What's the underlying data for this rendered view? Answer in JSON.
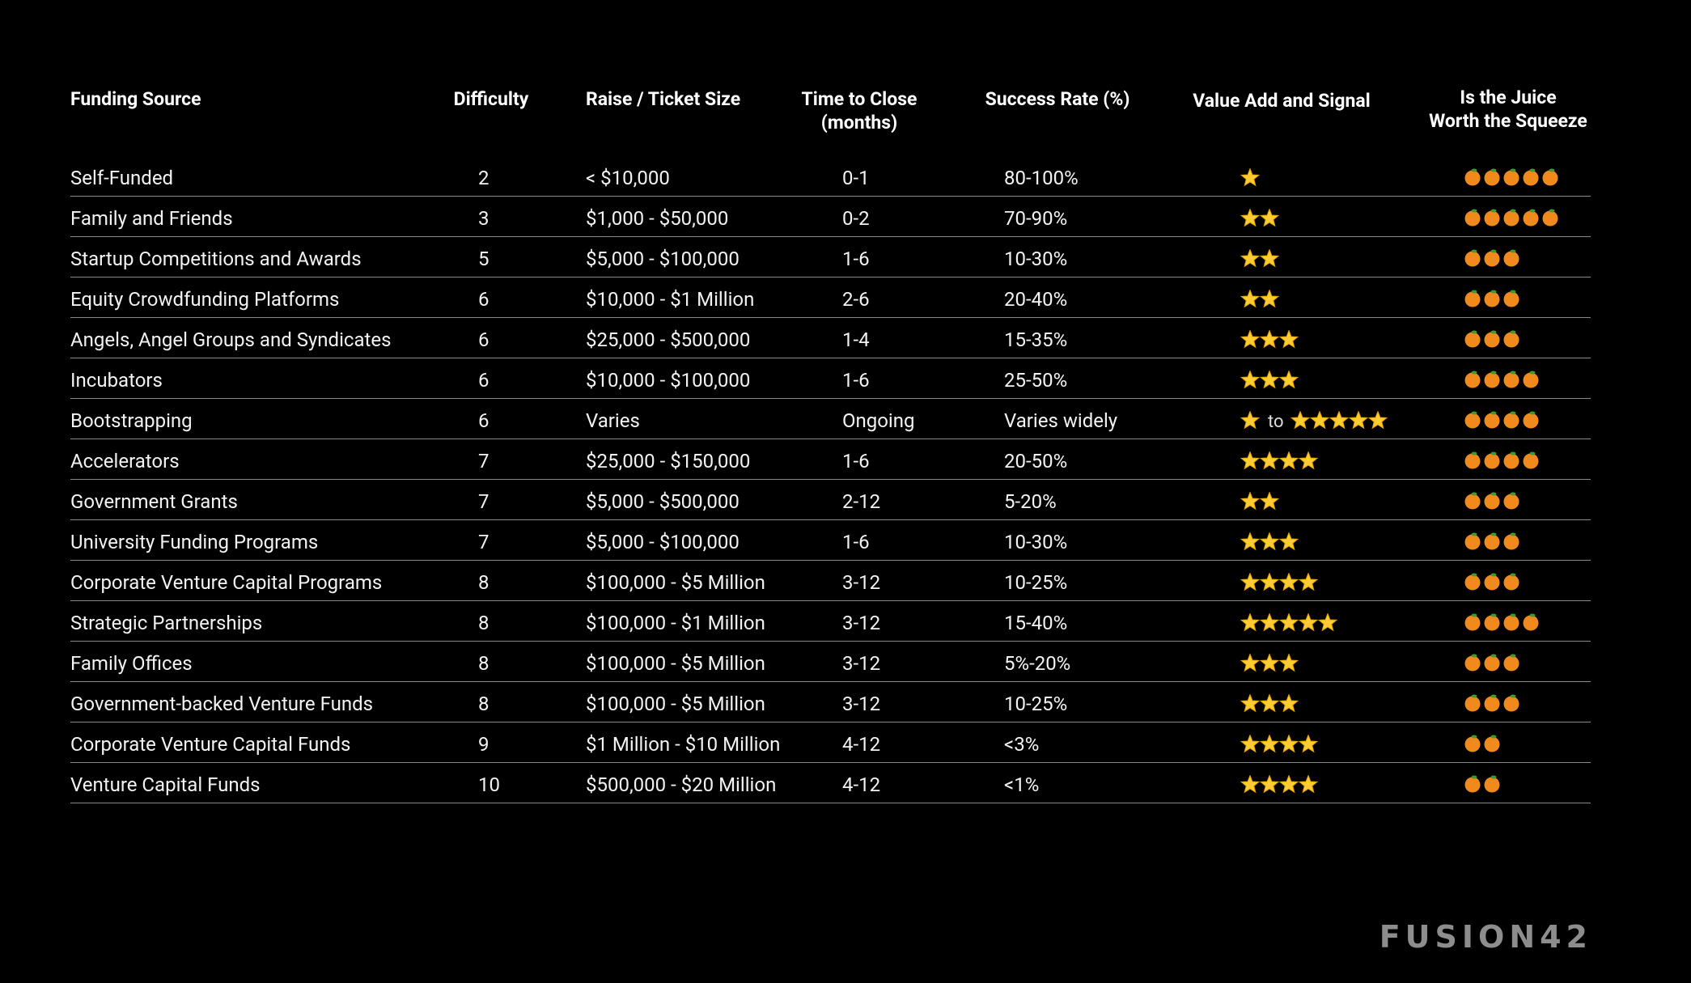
{
  "table": {
    "header": [
      "Funding Source",
      "Difficulty",
      "Raise / Ticket Size",
      "Time to Close\n(months)",
      "Success Rate (%)",
      "Value Add and Signal",
      "Is the Juice\nWorth the Squeeze"
    ],
    "rows": [
      [
        "Self-Funded",
        "2",
        "< $10,000",
        "0-1",
        "80-100%",
        1,
        5
      ],
      [
        "Family and Friends",
        "3",
        "$1,000 - $50,000",
        "0-2",
        "70-90%",
        2,
        5
      ],
      [
        "Startup Competitions and Awards",
        "5",
        "$5,000 - $100,000",
        "1-6",
        "10-30%",
        2,
        3
      ],
      [
        "Equity Crowdfunding Platforms",
        "6",
        "$10,000 - $1 Million",
        "2-6",
        "20-40%",
        2,
        3
      ],
      [
        "Angels, Angel Groups and Syndicates",
        "6",
        "$25,000 - $500,000",
        "1-4",
        "15-35%",
        3,
        3
      ],
      [
        "Incubators",
        "6",
        "$10,000 - $100,000",
        "1-6",
        "25-50%",
        3,
        4
      ],
      [
        "Bootstrapping",
        "6",
        "Varies",
        "Ongoing",
        "Varies widely",
        {
          "min": 1,
          "joiner": "to",
          "max": 5
        },
        4
      ],
      [
        "Accelerators",
        "7",
        "$25,000 - $150,000",
        "1-6",
        "20-50%",
        4,
        4
      ],
      [
        "Government Grants",
        "7",
        "$5,000 - $500,000",
        "2-12",
        "5-20%",
        2,
        3
      ],
      [
        "University Funding Programs",
        "7",
        "$5,000 - $100,000",
        "1-6",
        "10-30%",
        3,
        3
      ],
      [
        "Corporate Venture Capital Programs",
        "8",
        "$100,000 - $5 Million",
        "3-12",
        "10-25%",
        4,
        3
      ],
      [
        "Strategic Partnerships",
        "8",
        "$100,000 - $1 Million",
        "3-12",
        "15-40%",
        5,
        4
      ],
      [
        "Family Offices",
        "8",
        "$100,000 - $5 Million",
        "3-12",
        "5%-20%",
        3,
        3
      ],
      [
        "Government-backed Venture Funds",
        "8",
        "$100,000 - $5 Million",
        "3-12",
        "10-25%",
        3,
        3
      ],
      [
        "Corporate Venture Capital Funds",
        "9",
        "$1 Million - $10 Million",
        "4-12",
        "<3%",
        4,
        2
      ],
      [
        "Venture Capital Funds",
        "10",
        "$500,000 - $20 Million",
        "4-12",
        "<1%",
        4,
        2
      ]
    ]
  },
  "brand": "FUSION42"
}
